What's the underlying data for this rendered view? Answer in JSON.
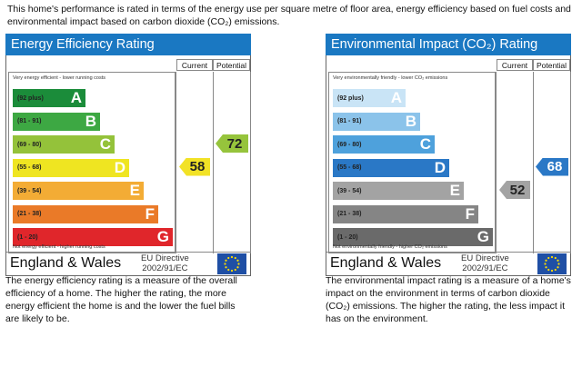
{
  "intro": "This home's performance is rated in terms of the energy use per square metre of floor area, energy efficiency based on fuel costs and environmental impact based on carbon dioxide (CO₂) emissions.",
  "energy": {
    "title": "Energy Efficiency Rating",
    "col_current": "Current",
    "col_potential": "Potential",
    "top_label": "Very energy efficient - lower running costs",
    "bottom_label": "Not energy efficient - higher running costs",
    "bands": [
      {
        "range": "(92 plus)",
        "letter": "A",
        "color": "#1b8c3a"
      },
      {
        "range": "(81 - 91)",
        "letter": "B",
        "color": "#3da843"
      },
      {
        "range": "(69 - 80)",
        "letter": "C",
        "color": "#94c23a"
      },
      {
        "range": "(55 - 68)",
        "letter": "D",
        "color": "#efe521"
      },
      {
        "range": "(39 - 54)",
        "letter": "E",
        "color": "#f3ac35"
      },
      {
        "range": "(21 - 38)",
        "letter": "F",
        "color": "#ea7a28"
      },
      {
        "range": "(1 - 20)",
        "letter": "G",
        "color": "#e0262b"
      }
    ],
    "current": {
      "value": "58",
      "band": 3,
      "color": "#f2e226"
    },
    "potential": {
      "value": "72",
      "band": 2,
      "color": "#96c43c"
    },
    "region": "England & Wales",
    "directive_line1": "EU Directive",
    "directive_line2": "2002/91/EC",
    "description": "The energy efficiency rating is a measure of the overall efficiency of a home. The higher the rating, the more energy efficient the home is and the lower the fuel bills are likely to be."
  },
  "environment": {
    "title": "Environmental Impact (CO₂) Rating",
    "col_current": "Current",
    "col_potential": "Potential",
    "top_label": "Very environmentally friendly - lower CO₂ emissions",
    "bottom_label": "Not environmentally friendly - higher CO₂ emissions",
    "bands": [
      {
        "range": "(92 plus)",
        "letter": "A",
        "color": "#c9e4f6"
      },
      {
        "range": "(81 - 91)",
        "letter": "B",
        "color": "#8bc3ea"
      },
      {
        "range": "(69 - 80)",
        "letter": "C",
        "color": "#4ea1dc"
      },
      {
        "range": "(55 - 68)",
        "letter": "D",
        "color": "#2a78c6"
      },
      {
        "range": "(39 - 54)",
        "letter": "E",
        "color": "#a3a3a3"
      },
      {
        "range": "(21 - 38)",
        "letter": "F",
        "color": "#858585"
      },
      {
        "range": "(1 - 20)",
        "letter": "G",
        "color": "#6a6a6a"
      }
    ],
    "current": {
      "value": "52",
      "band": 4,
      "color": "#a3a3a3"
    },
    "potential": {
      "value": "68",
      "band": 3,
      "color": "#2a78c6"
    },
    "region": "England & Wales",
    "directive_line1": "EU Directive",
    "directive_line2": "2002/91/EC",
    "description": "The environmental impact rating is a measure of a home's impact on the environment in terms of carbon dioxide (CO₂) emissions. The higher the rating, the less impact it has on the environment."
  }
}
